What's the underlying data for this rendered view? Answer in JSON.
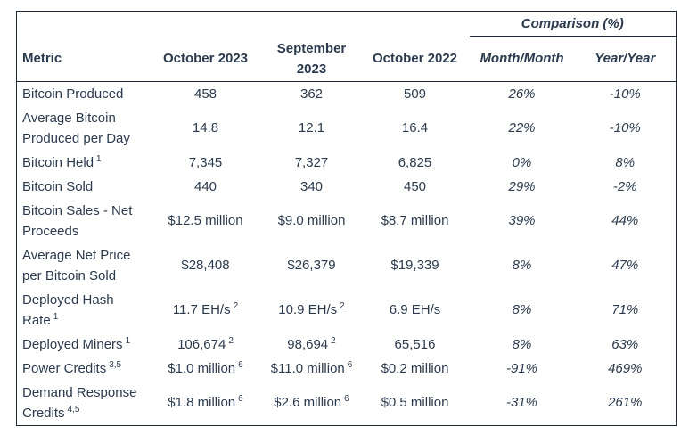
{
  "table": {
    "comparison_header": "Comparison (%)",
    "columns": [
      "Metric",
      "October 2023",
      "September 2023",
      "October 2022",
      "Month/Month",
      "Year/Year"
    ],
    "text_color": "#2b3a4d",
    "border_color": "#1e2935",
    "background_color": "#ffffff"
  },
  "rows": [
    {
      "metric": {
        "t": "Bitcoin Produced",
        "s": ""
      },
      "oct2023": {
        "t": "458",
        "s": ""
      },
      "sep2023": {
        "t": "362",
        "s": ""
      },
      "oct2022": {
        "t": "509",
        "s": ""
      },
      "month_month": "26%",
      "year_year": "-10%"
    },
    {
      "metric": {
        "t": "Average Bitcoin\nProduced per Day",
        "s": ""
      },
      "oct2023": {
        "t": "14.8",
        "s": ""
      },
      "sep2023": {
        "t": "12.1",
        "s": ""
      },
      "oct2022": {
        "t": "16.4",
        "s": ""
      },
      "month_month": "22%",
      "year_year": "-10%"
    },
    {
      "metric": {
        "t": "Bitcoin Held",
        "s": "1"
      },
      "oct2023": {
        "t": "7,345",
        "s": ""
      },
      "sep2023": {
        "t": "7,327",
        "s": ""
      },
      "oct2022": {
        "t": "6,825",
        "s": ""
      },
      "month_month": "0%",
      "year_year": "8%"
    },
    {
      "metric": {
        "t": "Bitcoin Sold",
        "s": ""
      },
      "oct2023": {
        "t": "440",
        "s": ""
      },
      "sep2023": {
        "t": "340",
        "s": ""
      },
      "oct2022": {
        "t": "450",
        "s": ""
      },
      "month_month": "29%",
      "year_year": "-2%"
    },
    {
      "metric": {
        "t": "Bitcoin Sales - Net\nProceeds",
        "s": ""
      },
      "oct2023": {
        "t": "$12.5 million",
        "s": ""
      },
      "sep2023": {
        "t": "$9.0 million",
        "s": ""
      },
      "oct2022": {
        "t": "$8.7 million",
        "s": ""
      },
      "month_month": "39%",
      "year_year": "44%"
    },
    {
      "metric": {
        "t": "Average Net Price\nper Bitcoin Sold",
        "s": ""
      },
      "oct2023": {
        "t": "$28,408",
        "s": ""
      },
      "sep2023": {
        "t": "$26,379",
        "s": ""
      },
      "oct2022": {
        "t": "$19,339",
        "s": ""
      },
      "month_month": "8%",
      "year_year": "47%"
    },
    {
      "metric": {
        "t": "Deployed Hash\nRate",
        "s": "1"
      },
      "oct2023": {
        "t": "11.7 EH/s",
        "s": "2"
      },
      "sep2023": {
        "t": "10.9 EH/s",
        "s": "2"
      },
      "oct2022": {
        "t": "6.9 EH/s",
        "s": ""
      },
      "month_month": "8%",
      "year_year": "71%"
    },
    {
      "metric": {
        "t": "Deployed Miners",
        "s": "1"
      },
      "oct2023": {
        "t": "106,674",
        "s": "2"
      },
      "sep2023": {
        "t": "98,694",
        "s": "2"
      },
      "oct2022": {
        "t": "65,516",
        "s": ""
      },
      "month_month": "8%",
      "year_year": "63%"
    },
    {
      "metric": {
        "t": "Power Credits",
        "s": "3,5"
      },
      "oct2023": {
        "t": "$1.0 million",
        "s": "6"
      },
      "sep2023": {
        "t": "$11.0 million",
        "s": "6"
      },
      "oct2022": {
        "t": "$0.2 million",
        "s": ""
      },
      "month_month": "-91%",
      "year_year": "469%"
    },
    {
      "metric": {
        "t": "Demand Response\nCredits",
        "s": "4,5"
      },
      "oct2023": {
        "t": "$1.8 million",
        "s": "6"
      },
      "sep2023": {
        "t": "$2.6 million",
        "s": "6"
      },
      "oct2022": {
        "t": "$0.5 million",
        "s": ""
      },
      "month_month": "-31%",
      "year_year": "261%"
    }
  ]
}
